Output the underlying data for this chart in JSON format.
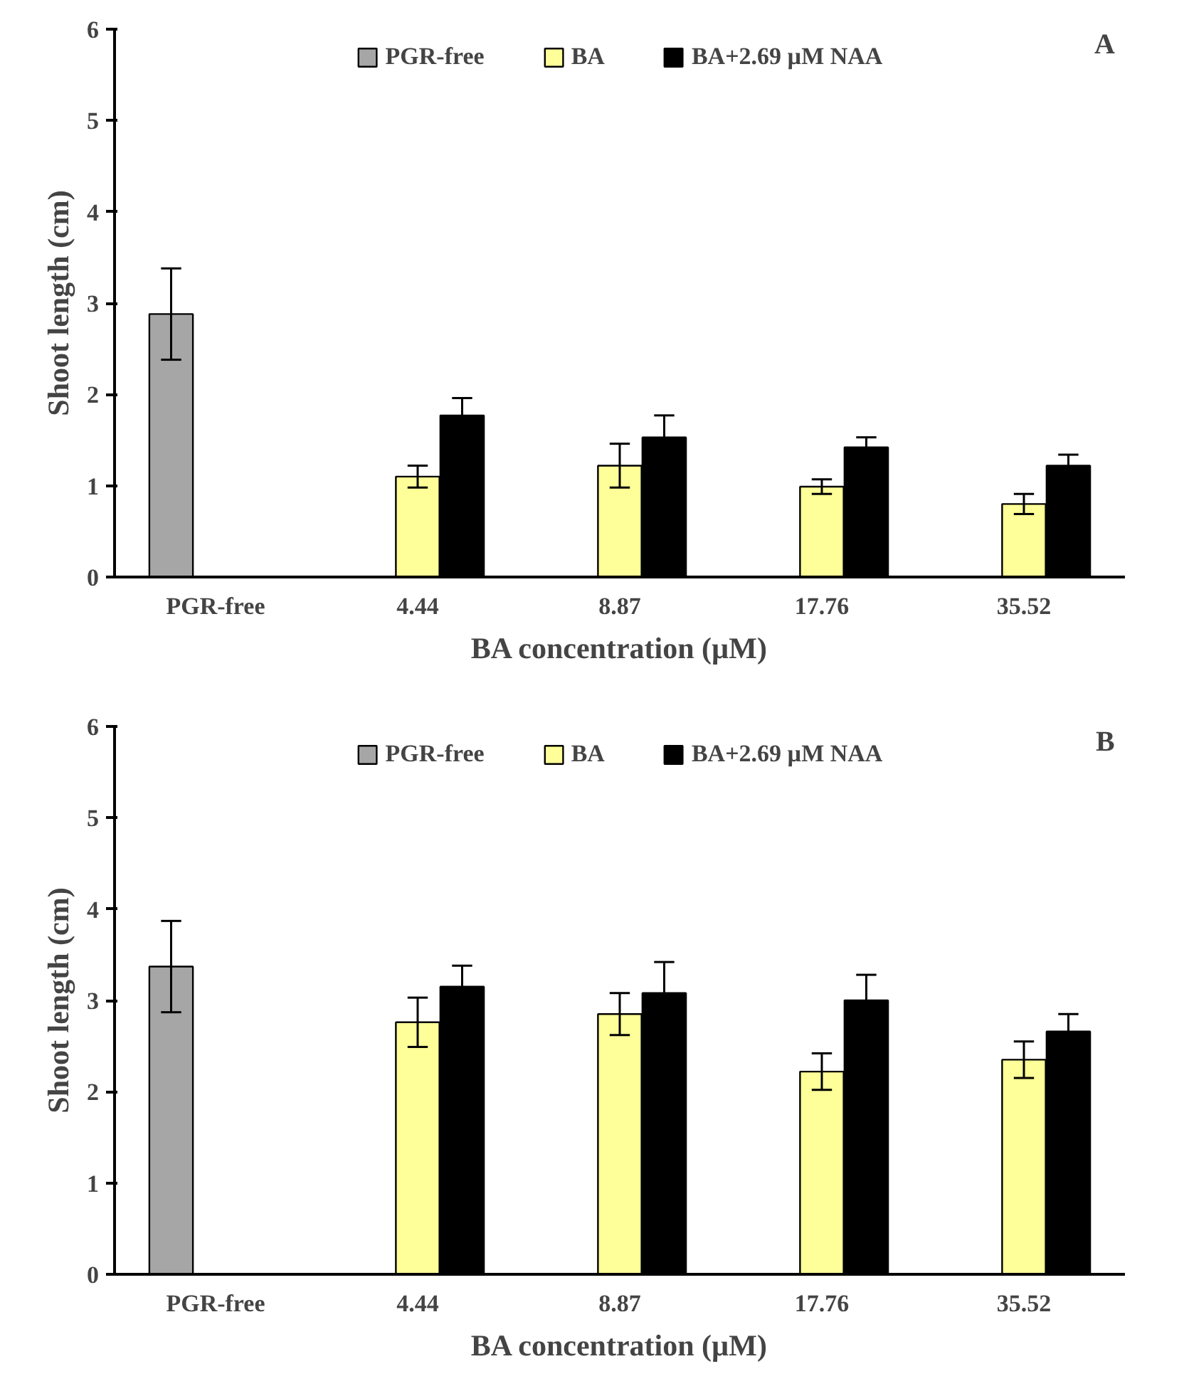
{
  "chart_data": [
    {
      "type": "bar",
      "xlabel": "BA concentration (µM)",
      "ylabel": "Shoot length (cm)",
      "annotations": [
        "A"
      ],
      "categories": [
        "PGR-free",
        "4.44",
        "8.87",
        "17.76",
        "35.52"
      ],
      "ylim": [
        0,
        6
      ],
      "yticks": [
        0,
        1,
        2,
        3,
        4,
        5,
        6
      ],
      "grid": false,
      "legend": "top",
      "series": [
        {
          "name": "PGR-free",
          "color": "#a6a6a6",
          "values": [
            2.88,
            null,
            null,
            null,
            null
          ],
          "errors": [
            0.5,
            null,
            null,
            null,
            null
          ]
        },
        {
          "name": "BA",
          "color": "#ffff99",
          "values": [
            null,
            1.1,
            1.22,
            0.99,
            0.8
          ],
          "errors": [
            null,
            0.12,
            0.24,
            0.08,
            0.11
          ]
        },
        {
          "name": "BA+2.69 µM NAA",
          "color": "#000000",
          "values": [
            null,
            1.77,
            1.53,
            1.42,
            1.22
          ],
          "errors": [
            null,
            0.19,
            0.24,
            0.11,
            0.12
          ]
        }
      ]
    },
    {
      "type": "bar",
      "xlabel": "BA concentration (µM)",
      "ylabel": "Shoot length (cm)",
      "annotations": [
        "B"
      ],
      "categories": [
        "PGR-free",
        "4.44",
        "8.87",
        "17.76",
        "35.52"
      ],
      "ylim": [
        0,
        6
      ],
      "yticks": [
        0,
        1,
        2,
        3,
        4,
        5,
        6
      ],
      "grid": false,
      "legend": "top",
      "series": [
        {
          "name": "PGR-free",
          "color": "#a6a6a6",
          "values": [
            3.37,
            null,
            null,
            null,
            null
          ],
          "errors": [
            0.5,
            null,
            null,
            null,
            null
          ]
        },
        {
          "name": "BA",
          "color": "#ffff99",
          "values": [
            null,
            2.76,
            2.85,
            2.22,
            2.35
          ],
          "errors": [
            null,
            0.27,
            0.23,
            0.2,
            0.2
          ]
        },
        {
          "name": "BA+2.69 µM NAA",
          "color": "#000000",
          "values": [
            null,
            3.15,
            3.08,
            3.0,
            2.66
          ],
          "errors": [
            null,
            0.23,
            0.34,
            0.28,
            0.19
          ]
        }
      ]
    }
  ]
}
